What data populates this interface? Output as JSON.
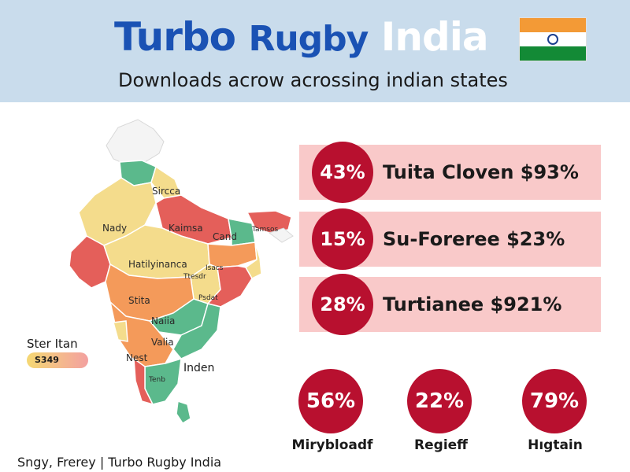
{
  "header": {
    "title_part1": "Turbo",
    "title_part2": "Rugby",
    "title_part3": "India",
    "subtitle": "Downloads acrow acrossing indian states",
    "flag_colors": [
      "#f39a36",
      "#ffffff",
      "#138a36"
    ],
    "flag_chakra_color": "#1c3f8f"
  },
  "map": {
    "region_labels": [
      "Sircca",
      "Nady",
      "Kaimsa",
      "Cand",
      "Hatilyinanca",
      "Stita",
      "Naiia",
      "Valia",
      "Nest",
      "Tenb",
      "Isacs",
      "Ttesdr",
      "Psdat",
      "Tamsos"
    ],
    "side_label": "Ster Itan",
    "side_value": "S349",
    "caption": "Inden"
  },
  "stats": [
    {
      "percent": "43%",
      "text": "Tuita Cloven $93%"
    },
    {
      "percent": "15%",
      "text": "Su-Foreree $23%"
    },
    {
      "percent": "28%",
      "text": "Turtianee $921%"
    }
  ],
  "circles": [
    {
      "percent": "56%",
      "label": "Mirybloadf"
    },
    {
      "percent": "22%",
      "label": "Regieff"
    },
    {
      "percent": "79%",
      "label": "Hıgtain"
    }
  ],
  "footer": "Sngy, Frerey | Turbo Rugby India",
  "colors": {
    "header_bg": "#c9dcec",
    "title_blue": "#1a52b4",
    "accent_red": "#b8102f",
    "row_pink": "#f9c9c9",
    "map_green": "#5bb98c",
    "map_red": "#e45f5a",
    "map_orange": "#f49a5a",
    "map_yellow": "#f4dc8c"
  }
}
